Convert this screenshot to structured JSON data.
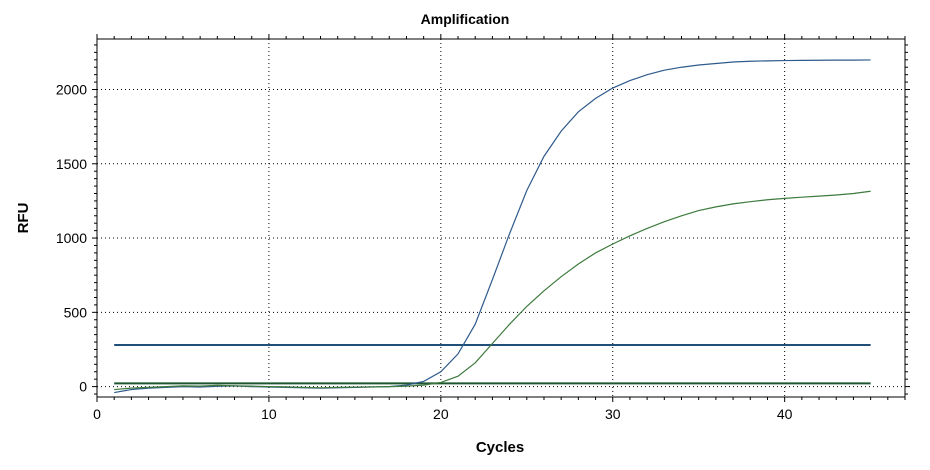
{
  "chart_data": {
    "type": "line",
    "title": "Amplification",
    "xlabel": "Cycles",
    "ylabel": "RFU",
    "xlim": [
      0,
      47
    ],
    "ylim": [
      -70,
      2340
    ],
    "xticks": [
      0,
      10,
      20,
      30,
      40
    ],
    "yticks": [
      0,
      500,
      1000,
      1500,
      2000
    ],
    "grid": true,
    "series": [
      {
        "color": "#2e5a8c",
        "x": [
          1,
          2,
          3,
          4,
          5,
          6,
          7,
          8,
          9,
          10,
          11,
          12,
          13,
          14,
          15,
          16,
          17,
          18,
          19,
          20,
          21,
          22,
          23,
          24,
          25,
          26,
          27,
          28,
          29,
          30,
          31,
          32,
          33,
          34,
          35,
          36,
          37,
          38,
          39,
          40,
          41,
          42,
          43,
          44,
          45
        ],
        "y": [
          -40,
          -20,
          -10,
          -5,
          0,
          -3,
          2,
          5,
          0,
          -3,
          -5,
          -8,
          -10,
          -8,
          -5,
          -3,
          0,
          10,
          35,
          100,
          220,
          420,
          720,
          1030,
          1320,
          1550,
          1720,
          1850,
          1940,
          2010,
          2060,
          2100,
          2130,
          2150,
          2165,
          2175,
          2185,
          2190,
          2193,
          2195,
          2196,
          2197,
          2198,
          2198,
          2199
        ]
      },
      {
        "color": "#3d7a3d",
        "x": [
          1,
          2,
          3,
          4,
          5,
          6,
          7,
          8,
          9,
          10,
          11,
          12,
          13,
          14,
          15,
          16,
          17,
          18,
          19,
          20,
          21,
          22,
          23,
          24,
          25,
          26,
          27,
          28,
          29,
          30,
          31,
          32,
          33,
          34,
          35,
          36,
          37,
          38,
          39,
          40,
          41,
          42,
          43,
          44,
          45
        ],
        "y": [
          -20,
          -10,
          -5,
          0,
          5,
          3,
          8,
          5,
          3,
          0,
          -2,
          -5,
          -8,
          -5,
          -3,
          -2,
          0,
          3,
          10,
          28,
          70,
          160,
          290,
          420,
          540,
          645,
          740,
          825,
          900,
          960,
          1015,
          1065,
          1110,
          1150,
          1185,
          1210,
          1230,
          1245,
          1258,
          1267,
          1275,
          1282,
          1290,
          1300,
          1315
        ]
      }
    ],
    "thresholds": [
      {
        "y": 280,
        "color": "#1f4e79"
      },
      {
        "y": 22,
        "color": "#1e5631"
      }
    ]
  }
}
